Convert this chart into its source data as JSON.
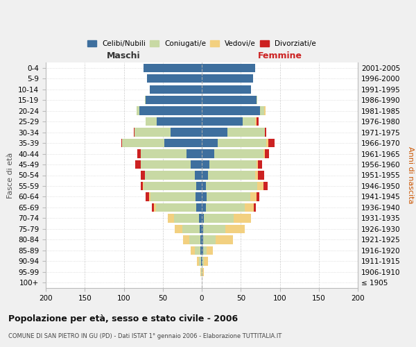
{
  "age_groups": [
    "100+",
    "95-99",
    "90-94",
    "85-89",
    "80-84",
    "75-79",
    "70-74",
    "65-69",
    "60-64",
    "55-59",
    "50-54",
    "45-49",
    "40-44",
    "35-39",
    "30-34",
    "25-29",
    "20-24",
    "15-19",
    "10-14",
    "5-9",
    "0-4"
  ],
  "birth_years": [
    "≤ 1905",
    "1906-1910",
    "1911-1915",
    "1916-1920",
    "1921-1925",
    "1926-1930",
    "1931-1935",
    "1936-1940",
    "1941-1945",
    "1946-1950",
    "1951-1955",
    "1956-1960",
    "1961-1965",
    "1966-1970",
    "1971-1975",
    "1976-1980",
    "1981-1985",
    "1986-1990",
    "1991-1995",
    "1996-2000",
    "2001-2005"
  ],
  "male_celibi": [
    0,
    0,
    1,
    2,
    2,
    3,
    4,
    7,
    8,
    7,
    9,
    14,
    20,
    48,
    40,
    58,
    80,
    72,
    67,
    70,
    75
  ],
  "male_coniugati": [
    0,
    1,
    3,
    7,
    14,
    22,
    32,
    52,
    58,
    68,
    64,
    64,
    58,
    54,
    46,
    14,
    4,
    1,
    0,
    0,
    0
  ],
  "male_vedovi": [
    0,
    1,
    2,
    5,
    8,
    10,
    8,
    2,
    2,
    1,
    0,
    0,
    0,
    0,
    0,
    0,
    0,
    0,
    0,
    0,
    0
  ],
  "male_divorziati": [
    0,
    0,
    0,
    0,
    0,
    0,
    0,
    3,
    4,
    2,
    5,
    7,
    5,
    1,
    1,
    0,
    0,
    0,
    0,
    0,
    0
  ],
  "female_celibi": [
    0,
    0,
    1,
    2,
    2,
    2,
    3,
    5,
    6,
    5,
    8,
    10,
    16,
    20,
    33,
    52,
    75,
    70,
    63,
    66,
    68
  ],
  "female_coniugati": [
    0,
    1,
    2,
    4,
    16,
    28,
    38,
    50,
    56,
    66,
    60,
    60,
    63,
    63,
    48,
    16,
    5,
    1,
    0,
    0,
    0
  ],
  "female_vedovi": [
    0,
    2,
    5,
    8,
    22,
    25,
    22,
    12,
    8,
    8,
    4,
    2,
    2,
    2,
    0,
    2,
    2,
    0,
    0,
    0,
    0
  ],
  "female_divorziati": [
    0,
    0,
    0,
    0,
    0,
    0,
    0,
    2,
    4,
    5,
    8,
    5,
    5,
    8,
    2,
    3,
    0,
    0,
    0,
    0,
    0
  ],
  "colors_celibi": "#3e6f9e",
  "colors_coniugati": "#c8d9a4",
  "colors_vedovi": "#f2d080",
  "colors_divorziati": "#cc2222",
  "title": "Popolazione per età, sesso e stato civile - 2006",
  "subtitle": "COMUNE DI SAN PIETRO IN GU (PD) - Dati ISTAT 1° gennaio 2006 - Elaborazione TUTTITALIA.IT",
  "xlabel_left": "Maschi",
  "xlabel_right": "Femmine",
  "ylabel_left": "Fasce di età",
  "ylabel_right": "Anni di nascita",
  "xlim": 200,
  "background_color": "#f0f0f0",
  "plot_bg": "#ffffff"
}
